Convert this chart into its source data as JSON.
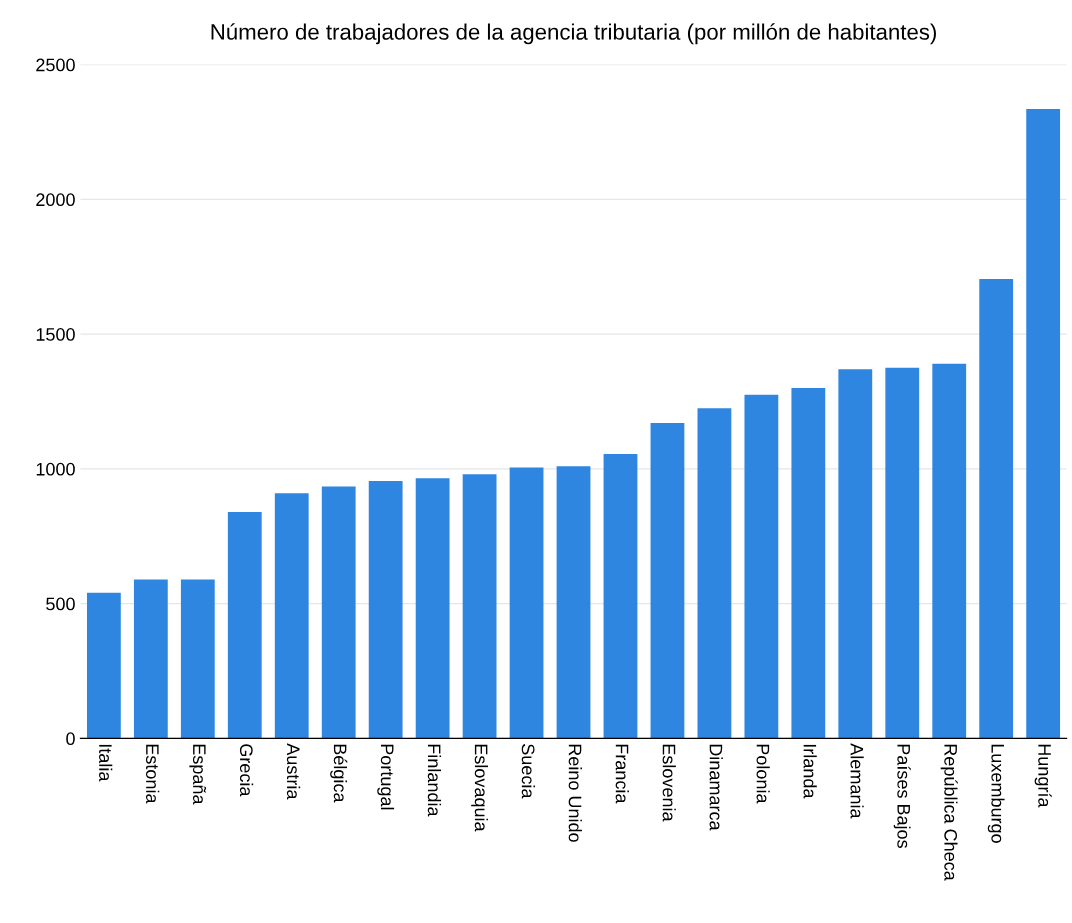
{
  "chart_data": {
    "type": "bar",
    "title": "Número de trabajadores de la agencia tributaria (por millón de habitantes)",
    "categories": [
      "Italia",
      "Estonia",
      "España",
      "Grecia",
      "Austria",
      "Bélgica",
      "Portugal",
      "Finlandia",
      "Eslovaquia",
      "Suecia",
      "Reino Unido",
      "Francia",
      "Eslovenia",
      "Dinamarca",
      "Polonia",
      "Irlanda",
      "Alemania",
      "Países Bajos",
      "República Checa",
      "Luxemburgo",
      "Hungría"
    ],
    "values": [
      540,
      590,
      590,
      840,
      910,
      935,
      955,
      965,
      980,
      1005,
      1010,
      1055,
      1170,
      1225,
      1275,
      1300,
      1370,
      1375,
      1390,
      1705,
      2335
    ],
    "color": "#2f86e0",
    "ylim": [
      0,
      2500
    ],
    "yticks": [
      0,
      500,
      1000,
      1500,
      2000,
      2500
    ],
    "grid": "y"
  }
}
